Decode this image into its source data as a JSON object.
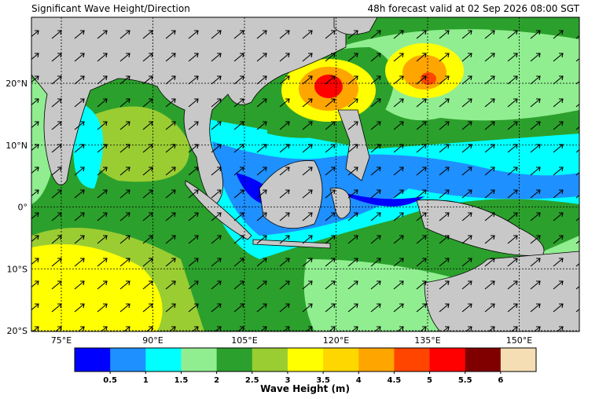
{
  "map": {
    "title": "Significant Wave Height/Direction",
    "subtitle": "48h forecast valid at 02 Sep 2026 08:00 SGT",
    "lon_labels": [
      "75°E",
      "90°E",
      "105°E",
      "120°E",
      "135°E",
      "150°E"
    ],
    "lat_labels": [
      "20°N",
      "10°N",
      "0°",
      "10°S",
      "20°S"
    ],
    "colorbar": {
      "label": "Wave Height (m)",
      "colors": [
        "#0000ff",
        "#1e90ff",
        "#00ffff",
        "#90ee90",
        "#2ca02c",
        "#9acd32",
        "#ffff00",
        "#ffd700",
        "#ffa500",
        "#ff4500",
        "#ff0000",
        "#800000",
        "#f5deb3"
      ],
      "ticks": [
        0.5,
        1,
        1.5,
        2,
        2.5,
        3,
        3.5,
        4,
        4.5,
        5,
        5.5,
        6
      ]
    }
  }
}
